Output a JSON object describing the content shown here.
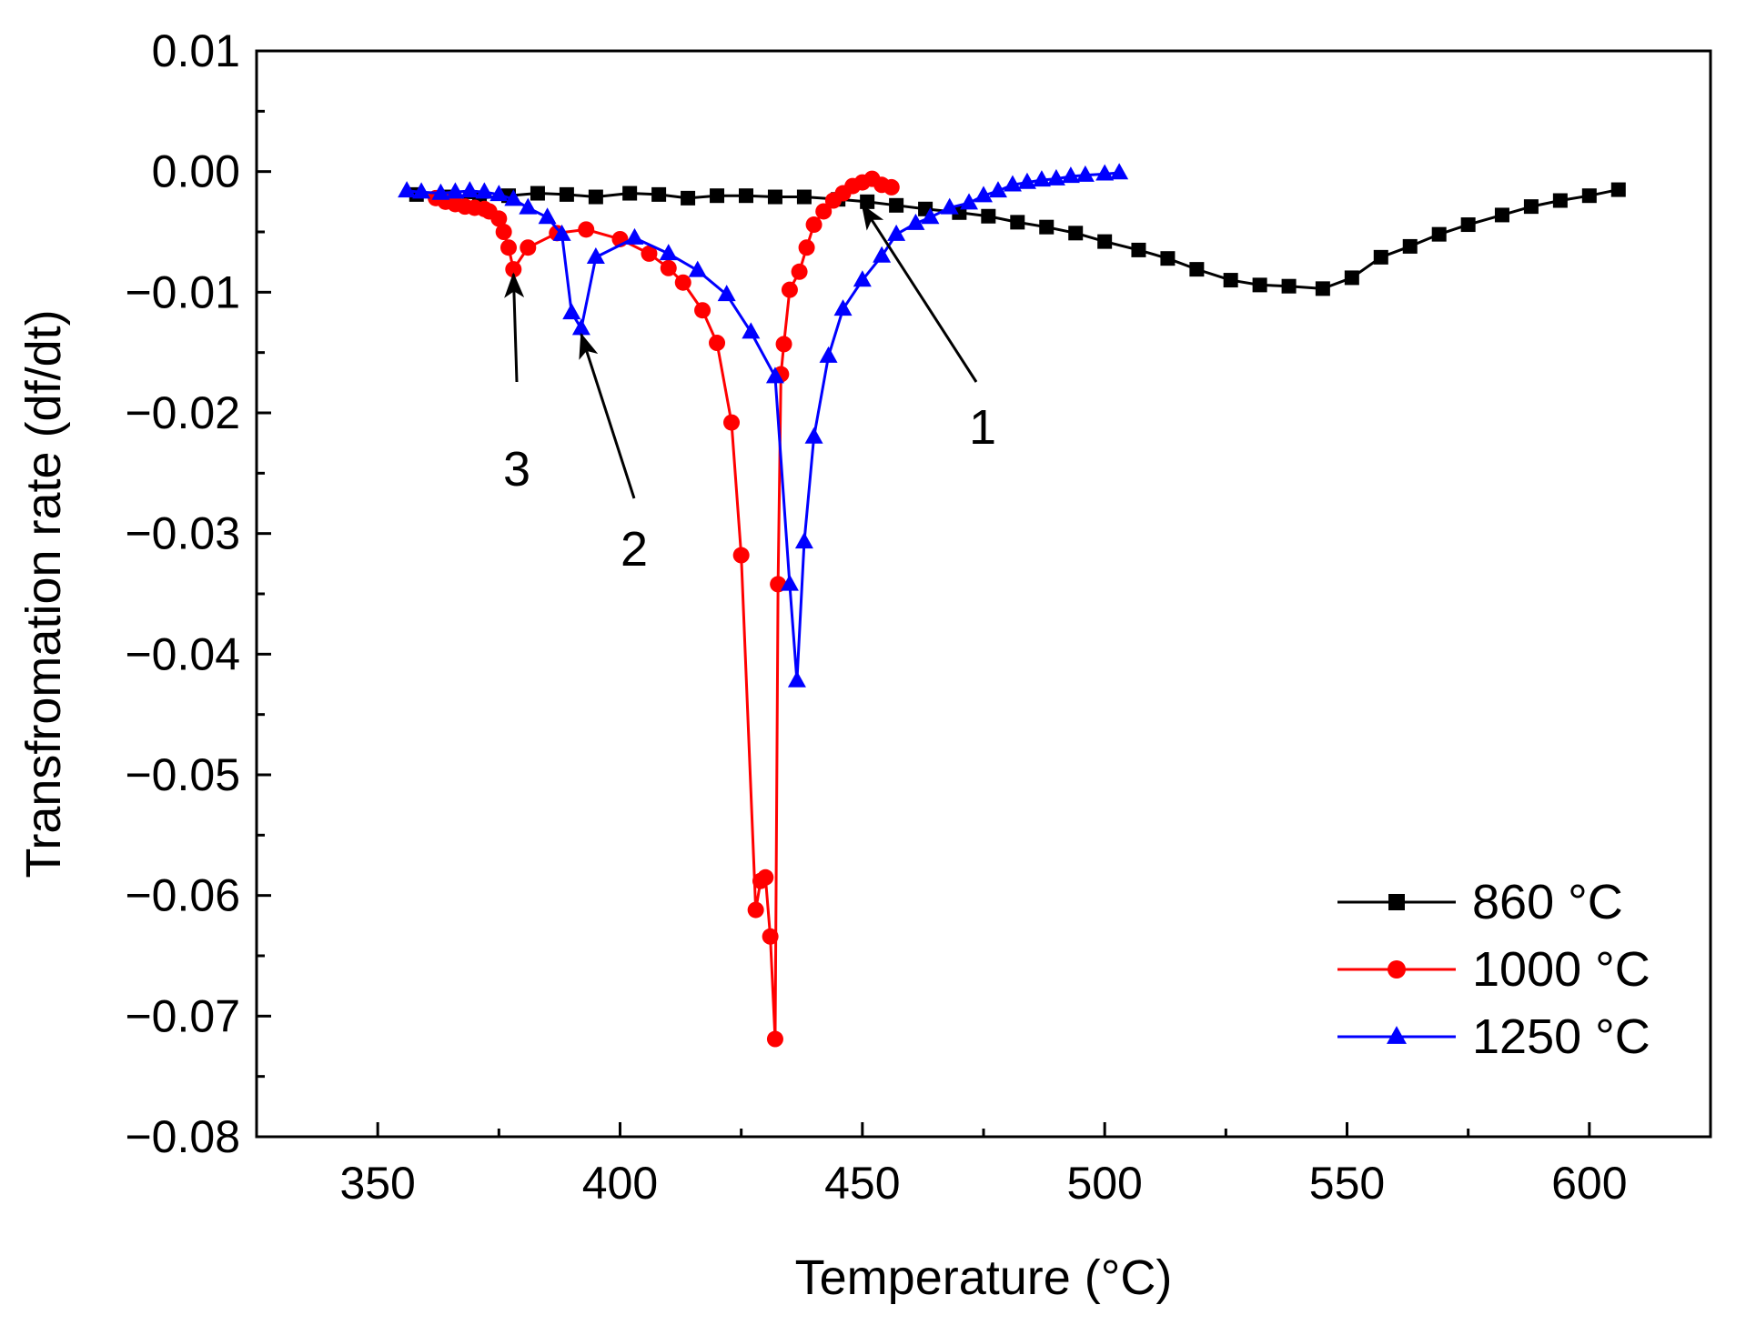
{
  "chart_data": {
    "type": "line",
    "title": "",
    "xlabel": "Temperature (°C)",
    "ylabel": "Transfromation rate (df/dt)",
    "xlim": [
      325,
      625
    ],
    "ylim": [
      -0.08,
      0.01
    ],
    "x_ticks": [
      350,
      400,
      450,
      500,
      550,
      600
    ],
    "x_tick_labels": [
      "350",
      "400",
      "450",
      "500",
      "550",
      "600"
    ],
    "y_ticks": [
      0.01,
      0.0,
      -0.01,
      -0.02,
      -0.03,
      -0.04,
      -0.05,
      -0.06,
      -0.07,
      -0.08
    ],
    "y_tick_labels": [
      "0.01",
      "0.00",
      "−0.01",
      "−0.02",
      "−0.03",
      "−0.04",
      "−0.05",
      "−0.06",
      "−0.07",
      "−0.08"
    ],
    "grid": false,
    "legend_position": "bottom-right",
    "series": [
      {
        "name": "860 °C",
        "color": "#000000",
        "marker": "square",
        "x": [
          358,
          364,
          371,
          377,
          383,
          389,
          395,
          402,
          408,
          414,
          420,
          426,
          432,
          438,
          445,
          451,
          457,
          463,
          470,
          476,
          482,
          488,
          494,
          500,
          507,
          513,
          519,
          526,
          532,
          538,
          545,
          551,
          557,
          563,
          569,
          575,
          582,
          588,
          594,
          600,
          606
        ],
        "y": [
          -0.0019,
          -0.0021,
          -0.0022,
          -0.002,
          -0.0018,
          -0.0019,
          -0.0021,
          -0.0018,
          -0.0019,
          -0.0022,
          -0.002,
          -0.002,
          -0.0021,
          -0.0021,
          -0.0023,
          -0.0025,
          -0.0028,
          -0.0031,
          -0.0034,
          -0.0037,
          -0.0042,
          -0.0046,
          -0.0051,
          -0.0058,
          -0.0065,
          -0.0072,
          -0.0081,
          -0.009,
          -0.0094,
          -0.0095,
          -0.0097,
          -0.0088,
          -0.0071,
          -0.0062,
          -0.0052,
          -0.0044,
          -0.0036,
          -0.0029,
          -0.0024,
          -0.002,
          -0.0015
        ]
      },
      {
        "name": "1000 °C",
        "color": "#ff0000",
        "marker": "circle",
        "x": [
          362,
          364,
          366,
          368,
          370,
          372,
          373,
          375,
          376,
          377,
          378,
          381,
          387,
          393,
          400,
          406,
          410,
          413,
          417,
          420,
          423,
          425,
          428,
          429,
          430,
          431,
          432,
          432.6,
          433.2,
          433.8,
          435,
          437,
          438.5,
          440,
          442,
          444,
          446,
          448,
          450,
          452,
          454,
          456
        ],
        "y": [
          -0.0022,
          -0.0025,
          -0.0027,
          -0.0029,
          -0.003,
          -0.0031,
          -0.0033,
          -0.0039,
          -0.005,
          -0.0063,
          -0.0081,
          -0.0063,
          -0.0051,
          -0.0048,
          -0.0056,
          -0.0068,
          -0.008,
          -0.0092,
          -0.0115,
          -0.0142,
          -0.0208,
          -0.0318,
          -0.0612,
          -0.0588,
          -0.0585,
          -0.0634,
          -0.0719,
          -0.0342,
          -0.0168,
          -0.0143,
          -0.0098,
          -0.0083,
          -0.0063,
          -0.0044,
          -0.0033,
          -0.0024,
          -0.0018,
          -0.0012,
          -0.0009,
          -0.0006,
          -0.0011,
          -0.0013
        ]
      },
      {
        "name": "1250 °C",
        "color": "#0000ff",
        "marker": "triangle",
        "x": [
          356,
          359,
          363,
          366,
          369,
          372,
          375,
          378,
          381,
          385,
          388,
          390,
          392,
          395,
          403,
          410,
          416,
          422,
          427,
          432,
          435,
          436.5,
          438,
          440,
          443,
          446,
          450,
          454,
          457,
          461,
          464,
          468,
          472,
          475,
          478,
          481,
          484,
          487,
          490,
          493,
          496,
          500,
          503
        ],
        "y": [
          -0.0016,
          -0.0017,
          -0.0018,
          -0.0017,
          -0.0016,
          -0.0017,
          -0.0019,
          -0.0023,
          -0.003,
          -0.0038,
          -0.0052,
          -0.0117,
          -0.013,
          -0.0071,
          -0.0055,
          -0.0068,
          -0.0082,
          -0.0102,
          -0.0133,
          -0.017,
          -0.0342,
          -0.0422,
          -0.0307,
          -0.022,
          -0.0153,
          -0.0114,
          -0.009,
          -0.007,
          -0.0052,
          -0.0043,
          -0.0038,
          -0.003,
          -0.0026,
          -0.002,
          -0.0016,
          -0.0011,
          -0.0009,
          -0.0007,
          -0.0006,
          -0.0004,
          -0.0003,
          -0.0002,
          -0.0001
        ]
      }
    ],
    "annotations": [
      {
        "label": "1",
        "point": [
          450,
          -0.0028
        ]
      },
      {
        "label": "2",
        "point": [
          392,
          -0.0135
        ]
      },
      {
        "label": "3",
        "point": [
          378,
          -0.0085
        ]
      }
    ]
  }
}
